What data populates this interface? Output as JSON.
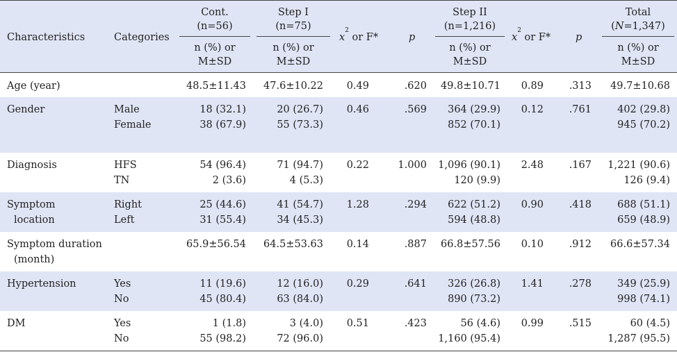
{
  "header": {
    "characteristics": "Characteristics",
    "categories": "Categories",
    "cont": "Cont.",
    "cont_n": "(n=56)",
    "step1": "Step I",
    "step1_n": "(n=75)",
    "chi1_a": "x",
    "chi1_sup": "2",
    "chi1_b": " or F*",
    "p1": "p",
    "step2": "Step II",
    "step2_n": "(n=1,216)",
    "chi2_a": "x",
    "chi2_sup": "2",
    "chi2_b": " or F*",
    "p2": "p",
    "total": "Total",
    "total_n_pre": "(",
    "total_n_italic": "N",
    "total_n_post": "=1,347)",
    "sub_line1": "n (%) or",
    "sub_line2": "M±SD"
  },
  "rows": [
    {
      "char1": "Age (year)",
      "char2": "",
      "cat1": "",
      "cat2": "",
      "cont1": "48.5±11.43",
      "cont2": "",
      "step1_1": "47.6±10.22",
      "step1_2": "",
      "chi1": "0.49",
      "p1": ".620",
      "step2_1": "49.8±10.71",
      "step2_2": "",
      "chi2": "0.89",
      "p2": ".313",
      "total1": "49.7±10.68",
      "total2": ""
    },
    {
      "char1": "Gender",
      "char2": "",
      "cat1": "Male",
      "cat2": "Female",
      "cont1": "18 (32.1)",
      "cont2": "38 (67.9)",
      "step1_1": "20 (26.7)",
      "step1_2": "55 (73.3)",
      "chi1": "0.46",
      "p1": ".569",
      "step2_1": "364 (29.9)",
      "step2_2": "852 (70.1)",
      "chi2": "0.12",
      "p2": ".761",
      "total1": "402 (29.8)",
      "total2": "945 (70.2)"
    },
    {
      "char1": "Diagnosis",
      "char2": "",
      "cat1": "HFS",
      "cat2": "TN",
      "cont1": "54 (96.4)",
      "cont2": "2 (3.6)",
      "step1_1": "71 (94.7)",
      "step1_2": "4 (5.3)",
      "chi1": "0.22",
      "p1": "1.000",
      "step2_1": "1,096 (90.1)",
      "step2_2": "120 (9.9)",
      "chi2": "2.48",
      "p2": ".167",
      "total1": "1,221 (90.6)",
      "total2": "126 (9.4)"
    },
    {
      "char1": "Symptom",
      "char2": "location",
      "cat1": "Right",
      "cat2": "Left",
      "cont1": "25 (44.6)",
      "cont2": "31 (55.4)",
      "step1_1": "41 (54.7)",
      "step1_2": "34 (45.3)",
      "chi1": "1.28",
      "p1": ".294",
      "step2_1": "622 (51.2)",
      "step2_2": "594 (48.8)",
      "chi2": "0.90",
      "p2": ".418",
      "total1": "688 (51.1)",
      "total2": "659 (48.9)"
    },
    {
      "char1": "Symptom duration",
      "char2": "(month)",
      "cat1": "",
      "cat2": "",
      "cont1": "65.9±56.54",
      "cont2": "",
      "step1_1": "64.5±53.63",
      "step1_2": "",
      "chi1": "0.14",
      "p1": ".887",
      "step2_1": "66.8±57.56",
      "step2_2": "",
      "chi2": "0.10",
      "p2": ".912",
      "total1": "66.6±57.34",
      "total2": ""
    },
    {
      "char1": "Hypertension",
      "char2": "",
      "cat1": "Yes",
      "cat2": "No",
      "cont1": "11 (19.6)",
      "cont2": "45 (80.4)",
      "step1_1": "12 (16.0)",
      "step1_2": "63 (84.0)",
      "chi1": "0.29",
      "p1": ".641",
      "step2_1": "326 (26.8)",
      "step2_2": "890 (73.2)",
      "chi2": "1.41",
      "p2": ".278",
      "total1": "349 (25.9)",
      "total2": "998 (74.1)"
    },
    {
      "char1": "DM",
      "char2": "",
      "cat1": "Yes",
      "cat2": "No",
      "cont1": "1 (1.8)",
      "cont2": "55 (98.2)",
      "step1_1": "3 (4.0)",
      "step1_2": "72 (96.0)",
      "chi1": "0.51",
      "p1": ".423",
      "step2_1": "56 (4.6)",
      "step2_2": "1,160 (95.4)",
      "chi2": "0.99",
      "p2": ".515",
      "total1": "60 (4.5)",
      "total2": "1,287 (95.5)"
    }
  ]
}
